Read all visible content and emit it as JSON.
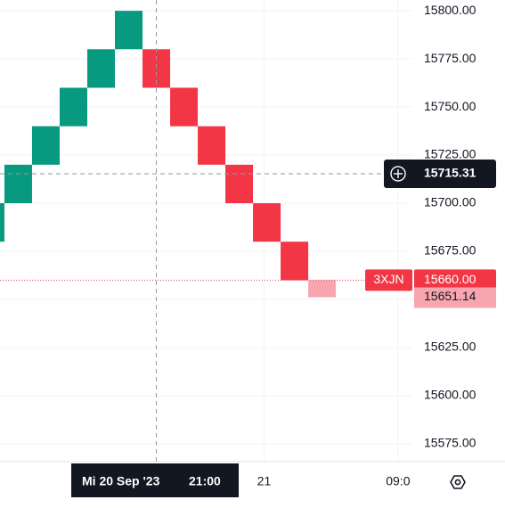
{
  "chart_data": {
    "type": "renko",
    "symbol": "3XJN",
    "bricks": {
      "open": [
        15680,
        15700,
        15720,
        15740,
        15760,
        15780,
        15780,
        15760,
        15740,
        15720,
        15700,
        15680,
        15660
      ],
      "close": [
        15700,
        15720,
        15740,
        15760,
        15780,
        15800,
        15760,
        15740,
        15720,
        15700,
        15680,
        15660,
        15651.14
      ]
    },
    "up_color": "#089981",
    "down_color": "#f23645",
    "forming_color": "#f7a5ae",
    "ylim": [
      15565.7,
      15805.6
    ],
    "yticks": [
      {
        "value": 15575,
        "label": "15575.00"
      },
      {
        "value": 15600,
        "label": "15600.00"
      },
      {
        "value": 15625,
        "label": "15625.00"
      },
      {
        "value": 15650,
        "label": "15650.00"
      },
      {
        "value": 15675,
        "label": "15675.00"
      },
      {
        "value": 15700,
        "label": "15700.00"
      },
      {
        "value": 15725,
        "label": "15725.00"
      },
      {
        "value": 15750,
        "label": "15750.00"
      },
      {
        "value": 15775,
        "label": "15775.00"
      },
      {
        "value": 15800,
        "label": "15800.00"
      }
    ],
    "xlim": [
      0.34,
      15.27
    ],
    "xticks": [
      {
        "value": 9.9,
        "label": "21"
      },
      {
        "value": 14.75,
        "label": "09:0"
      }
    ],
    "grid": true,
    "crosshair": {
      "price": 15715.31,
      "x": 6,
      "date_label": "Mi 20 Sep '23",
      "time_label": "21:00"
    },
    "last_price": {
      "value": 15660,
      "label": "15660.00"
    },
    "current_price": 15651.14
  }
}
